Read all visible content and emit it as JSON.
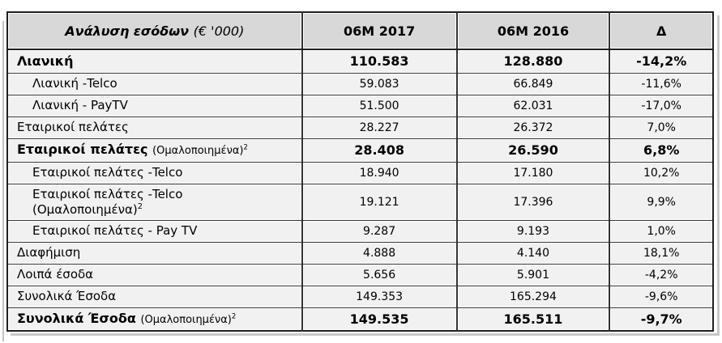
{
  "colors": {
    "header_bg": "#d8d8d8",
    "row_bg": "#f1f1f1",
    "border": "#333333",
    "shadow": "#c9c9c9",
    "text": "#000000"
  },
  "table": {
    "header": {
      "title_main": "Ανάλυση εσόδων",
      "title_suffix": "(€ '000)",
      "col_2017": "06M 2017",
      "col_2016": "06M 2016",
      "col_delta": "Δ"
    },
    "rows": [
      {
        "label": "Λιανική",
        "annotation": null,
        "annotation_sup": null,
        "annotation_inline": true,
        "bold": true,
        "indent": false,
        "v2017": "110.583",
        "v2016": "128.880",
        "delta": "-14,2%"
      },
      {
        "label": "Λιανική -Telco",
        "annotation": null,
        "annotation_sup": null,
        "annotation_inline": true,
        "bold": false,
        "indent": true,
        "v2017": "59.083",
        "v2016": "66.849",
        "delta": "-11,6%"
      },
      {
        "label": "Λιανική - PayTV",
        "annotation": null,
        "annotation_sup": null,
        "annotation_inline": true,
        "bold": false,
        "indent": true,
        "v2017": "51.500",
        "v2016": "62.031",
        "delta": "-17,0%"
      },
      {
        "label": "Εταιρικοί πελάτες",
        "annotation": null,
        "annotation_sup": null,
        "annotation_inline": true,
        "bold": false,
        "indent": false,
        "v2017": "28.227",
        "v2016": "26.372",
        "delta": "7,0%"
      },
      {
        "label": "Εταιρικοί πελάτες",
        "annotation": "(Ομαλοποιημένα)",
        "annotation_sup": "2",
        "annotation_inline": true,
        "bold": true,
        "indent": false,
        "v2017": "28.408",
        "v2016": "26.590",
        "delta": "6,8%"
      },
      {
        "label": "Εταιρικοί πελάτες -Telco",
        "annotation": null,
        "annotation_sup": null,
        "annotation_inline": true,
        "bold": false,
        "indent": true,
        "v2017": "18.940",
        "v2016": "17.180",
        "delta": "10,2%"
      },
      {
        "label": "Εταιρικοί πελάτες -Telco",
        "annotation": "(Ομαλοποιημένα)",
        "annotation_sup": "2",
        "annotation_inline": false,
        "bold": false,
        "indent": true,
        "v2017": "19.121",
        "v2016": "17.396",
        "delta": "9,9%"
      },
      {
        "label": "Εταιρικοί πελάτες - Pay TV",
        "annotation": null,
        "annotation_sup": null,
        "annotation_inline": true,
        "bold": false,
        "indent": true,
        "v2017": "9.287",
        "v2016": "9.193",
        "delta": "1,0%"
      },
      {
        "label": "Διαφήμιση",
        "annotation": null,
        "annotation_sup": null,
        "annotation_inline": true,
        "bold": false,
        "indent": false,
        "v2017": "4.888",
        "v2016": "4.140",
        "delta": "18,1%"
      },
      {
        "label": "Λοιπά έσοδα",
        "annotation": null,
        "annotation_sup": null,
        "annotation_inline": true,
        "bold": false,
        "indent": false,
        "v2017": "5.656",
        "v2016": "5.901",
        "delta": "-4,2%"
      },
      {
        "label": "Συνολικά Έσοδα",
        "annotation": null,
        "annotation_sup": null,
        "annotation_inline": true,
        "bold": false,
        "indent": false,
        "v2017": "149.353",
        "v2016": "165.294",
        "delta": "-9,6%"
      },
      {
        "label": "Συνολικά Έσοδα",
        "annotation": "(Ομαλοποιημένα)",
        "annotation_sup": "2",
        "annotation_inline": true,
        "bold": true,
        "indent": false,
        "v2017": "149.535",
        "v2016": "165.511",
        "delta": "-9,7%"
      }
    ]
  }
}
